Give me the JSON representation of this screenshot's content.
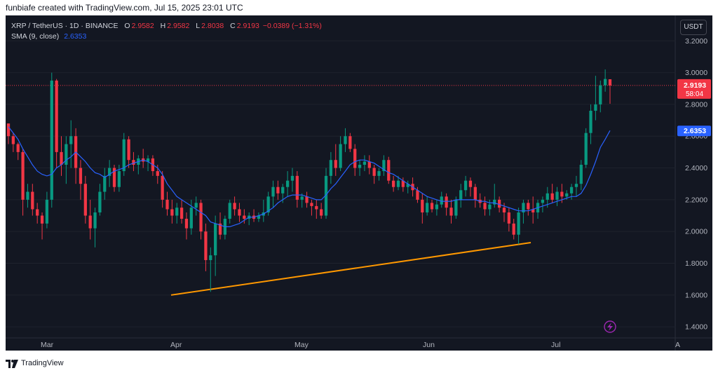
{
  "header": {
    "created_by": "funbiafe created with TradingView.com, Jul 15, 2025 23:01 UTC"
  },
  "legend": {
    "symbol": "XRP / TetherUS · 1D · BINANCE",
    "open_label": "O",
    "open": "2.9582",
    "high_label": "H",
    "high": "2.9582",
    "low_label": "L",
    "low": "2.8038",
    "close_label": "C",
    "close": "2.9193",
    "change": "−0.0389 (−1.31%)",
    "sma_label": "SMA (9, close)",
    "sma_value": "2.6353"
  },
  "currency_button": "USDT",
  "price_badge": {
    "price": "2.9193",
    "countdown": "58:04"
  },
  "sma_badge": "2.6353",
  "footer": {
    "brand": "TradingView"
  },
  "colors": {
    "up": "#089981",
    "down": "#f23645",
    "sma": "#2962ff",
    "trendline": "#ff9800",
    "background": "#131722"
  },
  "chart_data": {
    "type": "candlestick",
    "y_ticks": [
      "3.2000",
      "3.0000",
      "2.8000",
      "2.6000",
      "2.4000",
      "2.2000",
      "2.0000",
      "1.8000",
      "1.6000",
      "1.4000"
    ],
    "x_labels": [
      "Mar",
      "Apr",
      "May",
      "Jun",
      "Jul",
      "A"
    ],
    "ylim": [
      1.33,
      3.36
    ],
    "candles": [
      [
        2.68,
        2.68,
        2.55,
        2.6
      ],
      [
        2.6,
        2.62,
        2.5,
        2.55
      ],
      [
        2.55,
        2.56,
        2.45,
        2.5
      ],
      [
        2.5,
        2.52,
        2.1,
        2.2
      ],
      [
        2.2,
        2.3,
        2.15,
        2.25
      ],
      [
        2.25,
        2.3,
        2.1,
        2.14
      ],
      [
        2.14,
        2.18,
        2.05,
        2.1
      ],
      [
        2.1,
        2.12,
        1.95,
        2.05
      ],
      [
        2.05,
        2.25,
        2.02,
        2.2
      ],
      [
        2.2,
        3.0,
        2.15,
        2.95
      ],
      [
        2.95,
        2.96,
        2.4,
        2.5
      ],
      [
        2.5,
        2.6,
        2.35,
        2.42
      ],
      [
        2.42,
        2.6,
        2.3,
        2.55
      ],
      [
        2.55,
        2.7,
        2.4,
        2.6
      ],
      [
        2.6,
        2.65,
        2.3,
        2.4
      ],
      [
        2.4,
        2.45,
        2.2,
        2.3
      ],
      [
        2.3,
        2.35,
        2.05,
        2.1
      ],
      [
        2.1,
        2.2,
        1.95,
        2.02
      ],
      [
        2.02,
        2.15,
        1.9,
        2.12
      ],
      [
        2.12,
        2.3,
        2.1,
        2.25
      ],
      [
        2.25,
        2.4,
        2.2,
        2.35
      ],
      [
        2.35,
        2.45,
        2.28,
        2.4
      ],
      [
        2.4,
        2.42,
        2.25,
        2.28
      ],
      [
        2.28,
        2.42,
        2.25,
        2.38
      ],
      [
        2.38,
        2.62,
        2.35,
        2.58
      ],
      [
        2.58,
        2.6,
        2.4,
        2.45
      ],
      [
        2.45,
        2.5,
        2.38,
        2.42
      ],
      [
        2.42,
        2.48,
        2.36,
        2.46
      ],
      [
        2.46,
        2.52,
        2.4,
        2.44
      ],
      [
        2.44,
        2.48,
        2.38,
        2.46
      ],
      [
        2.46,
        2.48,
        2.35,
        2.38
      ],
      [
        2.38,
        2.42,
        2.3,
        2.35
      ],
      [
        2.35,
        2.38,
        2.15,
        2.2
      ],
      [
        2.2,
        2.25,
        2.1,
        2.14
      ],
      [
        2.14,
        2.2,
        2.05,
        2.1
      ],
      [
        2.1,
        2.18,
        2.05,
        2.15
      ],
      [
        2.15,
        2.2,
        2.05,
        2.08
      ],
      [
        2.08,
        2.12,
        1.95,
        2.02
      ],
      [
        2.02,
        2.2,
        1.98,
        2.15
      ],
      [
        2.15,
        2.22,
        2.1,
        2.18
      ],
      [
        2.18,
        2.2,
        1.95,
        2.0
      ],
      [
        2.0,
        2.05,
        1.75,
        1.82
      ],
      [
        1.82,
        1.9,
        1.62,
        1.85
      ],
      [
        1.85,
        2.1,
        1.72,
        2.05
      ],
      [
        2.05,
        2.12,
        1.95,
        1.98
      ],
      [
        1.98,
        2.1,
        1.95,
        2.08
      ],
      [
        2.08,
        2.2,
        2.05,
        2.18
      ],
      [
        2.18,
        2.22,
        2.1,
        2.14
      ],
      [
        2.14,
        2.18,
        2.06,
        2.1
      ],
      [
        2.1,
        2.14,
        2.05,
        2.08
      ],
      [
        2.08,
        2.12,
        2.04,
        2.1
      ],
      [
        2.1,
        2.14,
        2.06,
        2.08
      ],
      [
        2.08,
        2.12,
        2.06,
        2.1
      ],
      [
        2.1,
        2.2,
        2.06,
        2.12
      ],
      [
        2.12,
        2.25,
        2.1,
        2.22
      ],
      [
        2.22,
        2.32,
        2.15,
        2.28
      ],
      [
        2.28,
        2.32,
        2.2,
        2.24
      ],
      [
        2.24,
        2.3,
        2.18,
        2.28
      ],
      [
        2.28,
        2.38,
        2.22,
        2.32
      ],
      [
        2.32,
        2.4,
        2.25,
        2.35
      ],
      [
        2.35,
        2.38,
        2.15,
        2.2
      ],
      [
        2.2,
        2.24,
        2.15,
        2.22
      ],
      [
        2.22,
        2.25,
        2.15,
        2.18
      ],
      [
        2.18,
        2.2,
        2.1,
        2.16
      ],
      [
        2.16,
        2.2,
        2.08,
        2.14
      ],
      [
        2.14,
        2.18,
        2.08,
        2.1
      ],
      [
        2.1,
        2.4,
        2.08,
        2.35
      ],
      [
        2.35,
        2.5,
        2.3,
        2.45
      ],
      [
        2.45,
        2.55,
        2.35,
        2.4
      ],
      [
        2.4,
        2.6,
        2.38,
        2.55
      ],
      [
        2.55,
        2.65,
        2.5,
        2.6
      ],
      [
        2.6,
        2.62,
        2.5,
        2.52
      ],
      [
        2.52,
        2.55,
        2.35,
        2.4
      ],
      [
        2.4,
        2.45,
        2.35,
        2.42
      ],
      [
        2.42,
        2.48,
        2.38,
        2.44
      ],
      [
        2.44,
        2.48,
        2.36,
        2.4
      ],
      [
        2.4,
        2.42,
        2.3,
        2.35
      ],
      [
        2.35,
        2.4,
        2.32,
        2.38
      ],
      [
        2.38,
        2.48,
        2.35,
        2.45
      ],
      [
        2.45,
        2.47,
        2.3,
        2.32
      ],
      [
        2.32,
        2.35,
        2.25,
        2.28
      ],
      [
        2.28,
        2.35,
        2.26,
        2.32
      ],
      [
        2.32,
        2.34,
        2.25,
        2.28
      ],
      [
        2.28,
        2.32,
        2.24,
        2.3
      ],
      [
        2.3,
        2.34,
        2.22,
        2.26
      ],
      [
        2.26,
        2.28,
        2.18,
        2.2
      ],
      [
        2.2,
        2.24,
        2.05,
        2.12
      ],
      [
        2.12,
        2.22,
        2.1,
        2.18
      ],
      [
        2.18,
        2.2,
        2.12,
        2.14
      ],
      [
        2.14,
        2.2,
        2.1,
        2.17
      ],
      [
        2.17,
        2.25,
        2.15,
        2.22
      ],
      [
        2.22,
        2.24,
        2.1,
        2.15
      ],
      [
        2.15,
        2.2,
        2.05,
        2.1
      ],
      [
        2.1,
        2.22,
        2.08,
        2.2
      ],
      [
        2.2,
        2.3,
        2.15,
        2.26
      ],
      [
        2.26,
        2.35,
        2.22,
        2.32
      ],
      [
        2.32,
        2.34,
        2.22,
        2.28
      ],
      [
        2.28,
        2.3,
        2.15,
        2.2
      ],
      [
        2.2,
        2.24,
        2.15,
        2.18
      ],
      [
        2.18,
        2.22,
        2.1,
        2.14
      ],
      [
        2.14,
        2.2,
        2.1,
        2.17
      ],
      [
        2.17,
        2.3,
        2.15,
        2.2
      ],
      [
        2.2,
        2.22,
        2.12,
        2.15
      ],
      [
        2.15,
        2.18,
        2.06,
        2.12
      ],
      [
        2.12,
        2.15,
        2.0,
        2.05
      ],
      [
        2.05,
        2.08,
        1.95,
        1.98
      ],
      [
        1.98,
        2.15,
        1.92,
        2.12
      ],
      [
        2.12,
        2.2,
        2.05,
        2.18
      ],
      [
        2.18,
        2.2,
        2.1,
        2.14
      ],
      [
        2.14,
        2.22,
        2.05,
        2.12
      ],
      [
        2.12,
        2.2,
        2.08,
        2.18
      ],
      [
        2.18,
        2.22,
        2.12,
        2.2
      ],
      [
        2.2,
        2.28,
        2.15,
        2.24
      ],
      [
        2.24,
        2.3,
        2.18,
        2.2
      ],
      [
        2.2,
        2.28,
        2.16,
        2.25
      ],
      [
        2.25,
        2.3,
        2.18,
        2.22
      ],
      [
        2.22,
        2.26,
        2.2,
        2.24
      ],
      [
        2.24,
        2.3,
        2.2,
        2.28
      ],
      [
        2.28,
        2.35,
        2.22,
        2.3
      ],
      [
        2.3,
        2.45,
        2.26,
        2.42
      ],
      [
        2.42,
        2.65,
        2.4,
        2.62
      ],
      [
        2.62,
        2.8,
        2.55,
        2.76
      ],
      [
        2.76,
        2.98,
        2.7,
        2.8
      ],
      [
        2.8,
        2.95,
        2.75,
        2.92
      ],
      [
        2.92,
        3.02,
        2.88,
        2.96
      ],
      [
        2.9582,
        2.9582,
        2.8038,
        2.9193
      ]
    ],
    "sma": [
      2.66,
      2.62,
      2.58,
      2.52,
      2.47,
      2.42,
      2.38,
      2.36,
      2.35,
      2.36,
      2.4,
      2.42,
      2.45,
      2.47,
      2.5,
      2.47,
      2.44,
      2.4,
      2.37,
      2.36,
      2.34,
      2.36,
      2.38,
      2.39,
      2.4,
      2.42,
      2.43,
      2.44,
      2.45,
      2.44,
      2.42,
      2.4,
      2.36,
      2.3,
      2.26,
      2.22,
      2.2,
      2.18,
      2.16,
      2.14,
      2.12,
      2.1,
      2.06,
      2.05,
      2.04,
      2.03,
      2.03,
      2.04,
      2.05,
      2.07,
      2.09,
      2.09,
      2.1,
      2.11,
      2.13,
      2.15,
      2.18,
      2.2,
      2.22,
      2.23,
      2.23,
      2.23,
      2.22,
      2.21,
      2.2,
      2.2,
      2.23,
      2.27,
      2.3,
      2.34,
      2.38,
      2.42,
      2.44,
      2.45,
      2.45,
      2.44,
      2.43,
      2.41,
      2.39,
      2.37,
      2.36,
      2.34,
      2.32,
      2.3,
      2.28,
      2.26,
      2.24,
      2.22,
      2.21,
      2.2,
      2.19,
      2.19,
      2.19,
      2.2,
      2.2,
      2.2,
      2.2,
      2.2,
      2.19,
      2.19,
      2.18,
      2.18,
      2.17,
      2.16,
      2.15,
      2.14,
      2.13,
      2.13,
      2.13,
      2.14,
      2.15,
      2.16,
      2.17,
      2.18,
      2.19,
      2.2,
      2.21,
      2.22,
      2.22,
      2.24,
      2.29,
      2.36,
      2.44,
      2.53,
      2.58,
      2.6353
    ],
    "trendline": {
      "from": [
        1.6
      ],
      "to": [
        1.93
      ]
    }
  }
}
